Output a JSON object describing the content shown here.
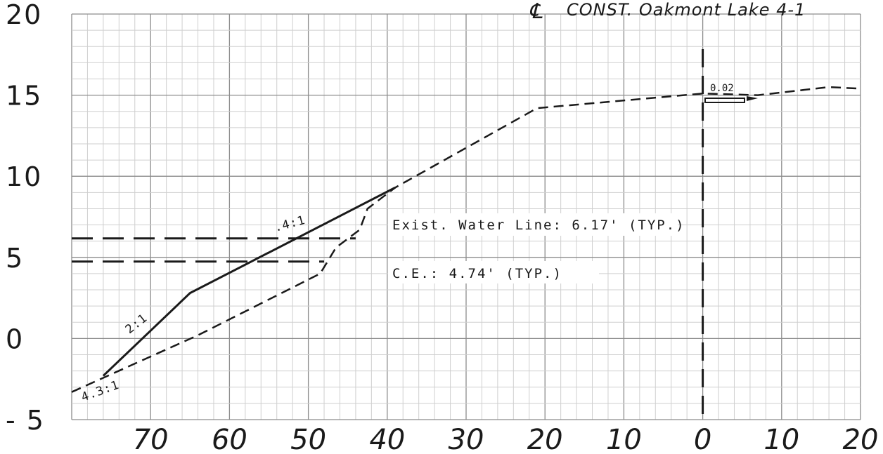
{
  "title": "CONST. Oakmont Lake 4-1",
  "centerline_symbol": "℄",
  "y_ticks": [
    {
      "label": "20",
      "value": 20
    },
    {
      "label": "15",
      "value": 15
    },
    {
      "label": "10",
      "value": 10
    },
    {
      "label": "5",
      "value": 5
    },
    {
      "label": "0",
      "value": 0
    },
    {
      "label": "- 5",
      "value": -5
    }
  ],
  "x_ticks": [
    {
      "label": "70",
      "value": -70
    },
    {
      "label": "60",
      "value": -60
    },
    {
      "label": "50",
      "value": -50
    },
    {
      "label": "40",
      "value": -40
    },
    {
      "label": "30",
      "value": -30
    },
    {
      "label": "20",
      "value": -20
    },
    {
      "label": "10",
      "value": -10
    },
    {
      "label": "0",
      "value": 0
    },
    {
      "label": "10",
      "value": 10
    },
    {
      "label": "20",
      "value": 20
    }
  ],
  "annotations": {
    "water_line": "Exist. Water Line: 6.17' (TYP.)",
    "ce": "C.E.: 4.74' (TYP.)",
    "slope_4_1": ".4:1",
    "slope_2_1": "2:1",
    "slope_4_3_1": "4.3:1",
    "cross_slope": "0.02"
  },
  "levels": {
    "water_line": 6.17,
    "ce": 4.74
  },
  "colors": {
    "ink": "#1a1a1a",
    "grid_minor": "#cfcfcf",
    "grid_major": "#8c8c8c"
  },
  "profiles": {
    "proposed_solid": [
      [
        -76,
        -2.3
      ],
      [
        -65,
        2.8
      ],
      [
        -39,
        9.3
      ]
    ],
    "existing_dashed": [
      [
        -80,
        -3.3
      ],
      [
        -64,
        0.2
      ],
      [
        -48.5,
        4.0
      ],
      [
        -46.5,
        5.6
      ],
      [
        -43.5,
        6.7
      ],
      [
        -42.5,
        8.0
      ],
      [
        -39,
        9.3
      ],
      [
        -21,
        14.2
      ],
      [
        0,
        15.1
      ],
      [
        7,
        15.0
      ],
      [
        16,
        15.5
      ],
      [
        20,
        15.4
      ]
    ]
  }
}
